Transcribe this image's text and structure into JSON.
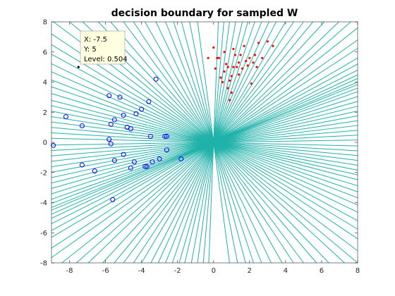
{
  "chart_data": {
    "type": "scatter",
    "title": "decision boundary for sampled W",
    "xlabel": "",
    "ylabel": "",
    "xlim": [
      -9,
      8
    ],
    "ylim": [
      -8,
      8
    ],
    "xticks": [
      "-8",
      "-6",
      "-4",
      "-2",
      "0",
      "2",
      "4",
      "6",
      "8"
    ],
    "yticks": [
      "-8",
      "-6",
      "-4",
      "-2",
      "0",
      "2",
      "4",
      "6",
      "8"
    ],
    "grid": false,
    "line_color": "#20b2aa",
    "boundary_slopes": [
      -9.0,
      -6.0,
      -4.5,
      -3.6,
      -3.0,
      -2.5,
      -2.1,
      -1.8,
      -1.6,
      -1.4,
      -1.25,
      -1.1,
      -1.0,
      -0.9,
      -0.8,
      -0.72,
      -0.65,
      -0.58,
      -0.52,
      -0.46,
      -0.41,
      -0.36,
      -0.31,
      -0.27,
      -0.23,
      -0.19,
      -0.15,
      -0.11,
      -0.07,
      -0.03,
      0.02,
      0.06,
      0.1,
      0.14,
      0.18,
      0.22,
      0.26,
      0.3,
      0.34,
      0.38,
      0.42,
      0.45,
      0.48,
      0.5,
      0.53,
      0.56,
      0.6,
      0.65,
      0.7,
      0.78,
      0.85,
      0.95,
      1.05,
      1.15,
      1.3,
      1.45,
      1.6,
      1.8,
      2.0,
      2.3,
      2.6,
      3.0,
      3.5,
      4.2,
      5.0,
      6.5,
      9.0,
      14.0,
      30.0
    ],
    "series": [
      {
        "name": "",
        "marker": "circle-open",
        "color": "#0000ff",
        "x": [
          -8.9,
          -8.2,
          -7.3,
          -7.3,
          -6.6,
          -5.8,
          -5.8,
          -5.7,
          -5.7,
          -5.6,
          -5.5,
          -5.5,
          -5.2,
          -5.0,
          -5.0,
          -4.8,
          -4.6,
          -4.6,
          -4.4,
          -4.3,
          -4.0,
          -3.8,
          -3.7,
          -3.6,
          -3.5,
          -3.4,
          -3.2,
          -3.0,
          -2.7,
          -2.6,
          -2.6,
          -1.8
        ],
        "y": [
          -0.2,
          1.7,
          -1.5,
          1.1,
          -1.9,
          3.1,
          0.2,
          -0.1,
          1.2,
          -3.8,
          1.5,
          -1.2,
          3.0,
          -0.8,
          1.8,
          1.0,
          -1.7,
          0.9,
          -1.3,
          1.9,
          2.2,
          -1.6,
          -1.6,
          2.7,
          0.4,
          -1.3,
          4.2,
          -1.1,
          0.4,
          -0.5,
          0.4,
          -1.1
        ]
      },
      {
        "name": "",
        "marker": "dot",
        "color": "#ff0000",
        "x": [
          -0.3,
          0.0,
          0.1,
          0.2,
          0.3,
          0.4,
          0.5,
          0.6,
          0.6,
          0.7,
          0.8,
          0.8,
          0.9,
          0.9,
          1.0,
          1.0,
          1.1,
          1.1,
          1.2,
          1.3,
          1.4,
          1.4,
          1.5,
          1.6,
          1.7,
          1.8,
          1.9,
          2.0,
          2.1,
          2.2,
          2.3,
          2.4,
          2.5,
          2.7,
          3.0,
          3.3
        ],
        "y": [
          5.6,
          6.3,
          4.9,
          5.6,
          5.6,
          4.3,
          4.0,
          4.7,
          6.0,
          5.2,
          3.6,
          5.0,
          2.8,
          4.1,
          4.4,
          3.3,
          5.0,
          6.2,
          5.8,
          5.0,
          4.5,
          5.3,
          5.8,
          4.9,
          6.4,
          5.4,
          5.1,
          5.6,
          3.9,
          5.3,
          5.8,
          5.0,
          6.6,
          5.6,
          6.7,
          6.4
        ]
      },
      {
        "name": "",
        "marker": "dot",
        "color": "#000000",
        "x": [
          -7.5
        ],
        "y": [
          5
        ]
      }
    ],
    "datatip": {
      "x_text": "X: -7.5",
      "y_text": "Y: 5",
      "level_text": "Level: 0.504",
      "background": "#ffffe0"
    }
  }
}
